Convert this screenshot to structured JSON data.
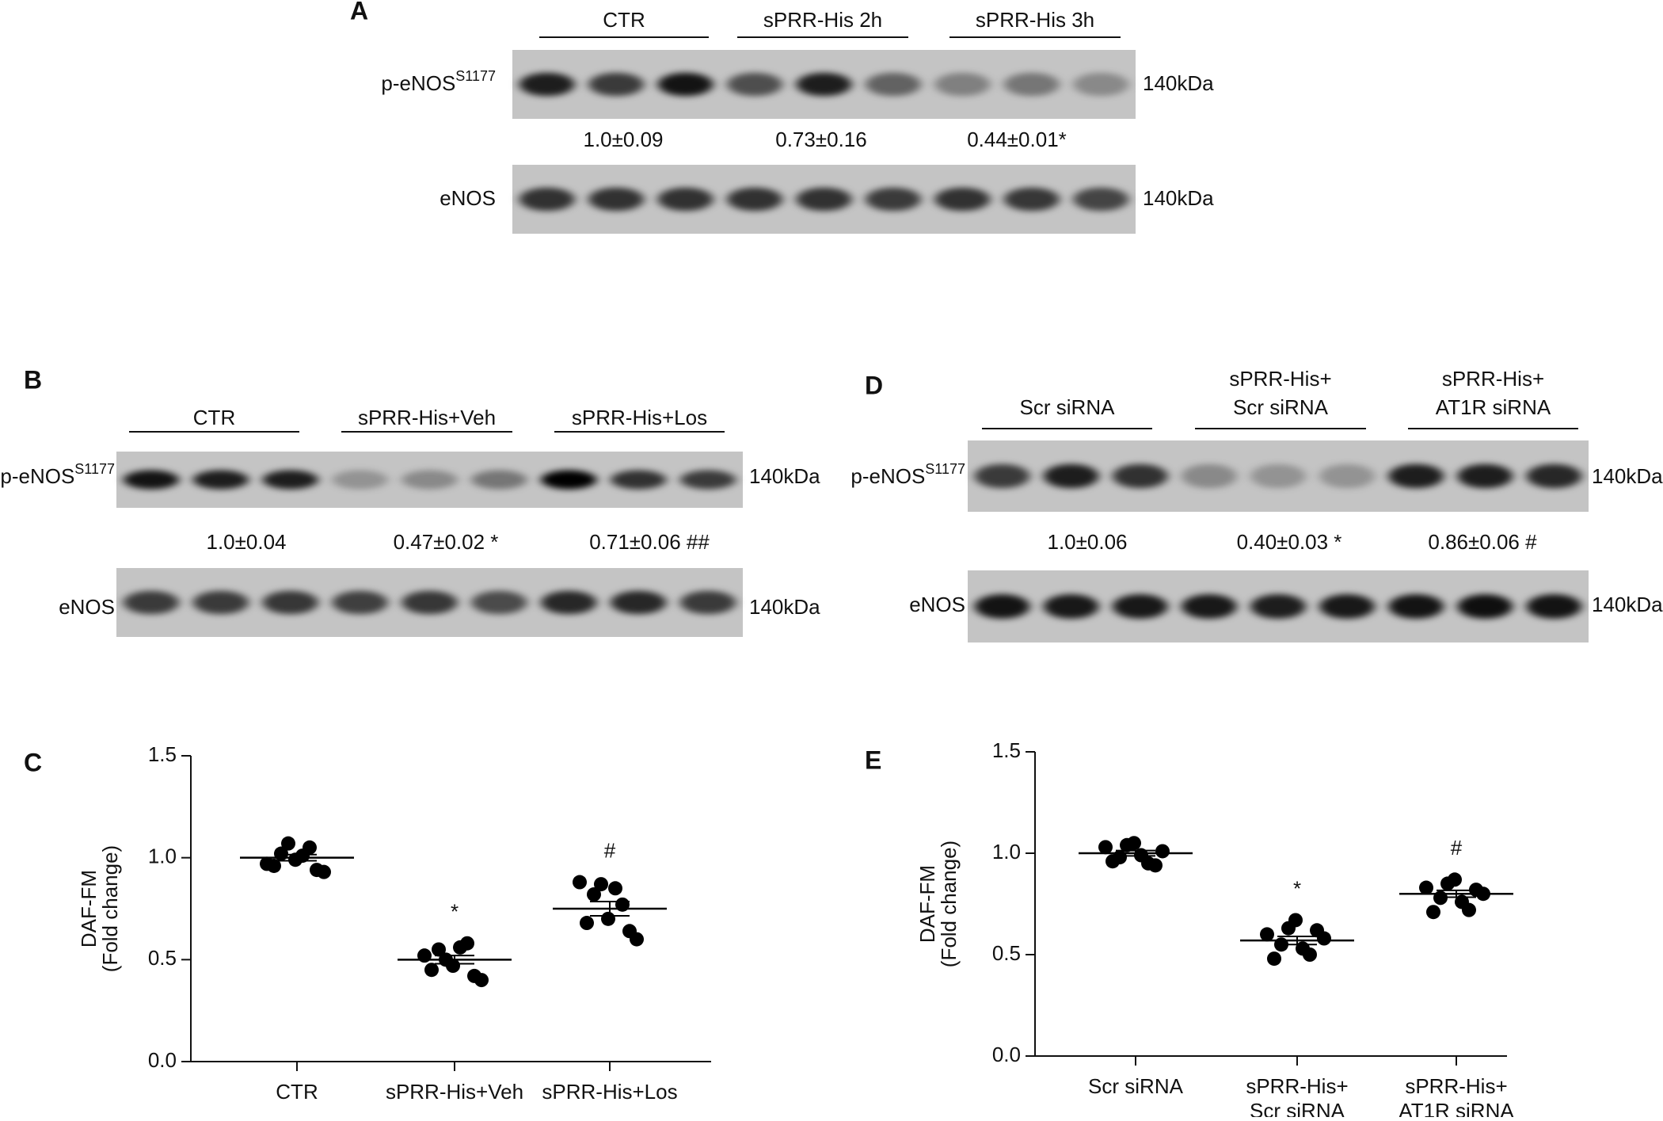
{
  "blots": [
    {
      "label": "A",
      "groups": [
        [
          "CTR"
        ],
        [
          "sPRR-His 2h"
        ],
        [
          "sPRR-His 3h"
        ]
      ],
      "rows": [
        {
          "label": "p-eNOS",
          "sup": "S1177",
          "kda": "140kDa"
        },
        {
          "label": "eNOS",
          "sup": null,
          "kda": "140kDa"
        }
      ],
      "quant": [
        "1.0±0.09",
        "0.73±0.16",
        "0.44±0.01*"
      ]
    },
    {
      "label": "B",
      "groups": [
        [
          "CTR"
        ],
        [
          "sPRR-His+Veh"
        ],
        [
          "sPRR-His+Los"
        ]
      ],
      "rows": [
        {
          "label": "p-eNOS",
          "sup": "S1177",
          "kda": "140kDa"
        },
        {
          "label": "eNOS",
          "sup": null,
          "kda": "140kDa"
        }
      ],
      "quant": [
        "1.0±0.04",
        "0.47±0.02 *",
        "0.71±0.06 ##"
      ]
    },
    {
      "label": "D",
      "groups": [
        [
          "Scr siRNA"
        ],
        [
          "sPRR-His+",
          "Scr siRNA"
        ],
        [
          "sPRR-His+",
          "AT1R siRNA"
        ]
      ],
      "rows": [
        {
          "label": "p-eNOS",
          "sup": "S1177",
          "kda": "140kDa"
        },
        {
          "label": "eNOS",
          "sup": null,
          "kda": "140kDa"
        }
      ],
      "quant": [
        "1.0±0.06",
        "0.40±0.03 *",
        "0.86±0.06 #"
      ]
    }
  ],
  "chart_data": [
    {
      "type": "scatter",
      "label": "C",
      "ylabel": [
        "DAF-FM",
        "(Fold   change)"
      ],
      "categories": [
        [
          "CTR"
        ],
        [
          "sPRR-His+Veh"
        ],
        [
          "sPRR-His+Los"
        ]
      ],
      "series": [
        {
          "values": [
            0.97,
            1.02,
            0.99,
            1.05,
            0.93,
            0.96,
            1.07,
            1.01,
            0.94
          ],
          "mean": 1.0,
          "sem": 0.015
        },
        {
          "values": [
            0.52,
            0.55,
            0.47,
            0.58,
            0.4,
            0.45,
            0.5,
            0.56,
            0.42
          ],
          "mean": 0.5,
          "sem": 0.02
        },
        {
          "values": [
            0.88,
            0.82,
            0.7,
            0.77,
            0.6,
            0.68,
            0.87,
            0.85,
            0.64
          ],
          "mean": 0.75,
          "sem": 0.035
        }
      ],
      "color": "#000000",
      "annotations": [
        {
          "text": "*",
          "category": 1
        },
        {
          "text": "#",
          "category": 2
        }
      ],
      "ylim": [
        0,
        1.5
      ],
      "yticks": [
        {
          "value": 0,
          "label": "0.0"
        },
        {
          "value": 0.5,
          "label": "0.5"
        },
        {
          "value": 1,
          "label": "1.0"
        },
        {
          "value": 1.5,
          "label": "1.5"
        }
      ]
    },
    {
      "type": "scatter",
      "label": "E",
      "ylabel": [
        "DAF-FM",
        "(Fold   change)"
      ],
      "categories": [
        [
          "Scr siRNA"
        ],
        [
          "sPRR-His+",
          "Scr siRNA"
        ],
        [
          "sPRR-His+",
          "AT1R siRNA"
        ]
      ],
      "series": [
        {
          "values": [
            1.03,
            0.98,
            1.05,
            0.95,
            1.01,
            0.96,
            1.04,
            0.99,
            0.94
          ],
          "mean": 1.0,
          "sem": 0.013
        },
        {
          "values": [
            0.6,
            0.55,
            0.67,
            0.5,
            0.58,
            0.48,
            0.63,
            0.53,
            0.62
          ],
          "mean": 0.57,
          "sem": 0.02
        },
        {
          "values": [
            0.83,
            0.78,
            0.87,
            0.72,
            0.8,
            0.71,
            0.85,
            0.76,
            0.82
          ],
          "mean": 0.8,
          "sem": 0.017
        }
      ],
      "color": "#000000",
      "annotations": [
        {
          "text": "*",
          "category": 1
        },
        {
          "text": "#",
          "category": 2
        }
      ],
      "ylim": [
        0,
        1.5
      ],
      "yticks": [
        {
          "value": 0,
          "label": "0.0"
        },
        {
          "value": 0.5,
          "label": "0.5"
        },
        {
          "value": 1,
          "label": "1.0"
        },
        {
          "value": 1.5,
          "label": "1.5"
        }
      ]
    }
  ]
}
